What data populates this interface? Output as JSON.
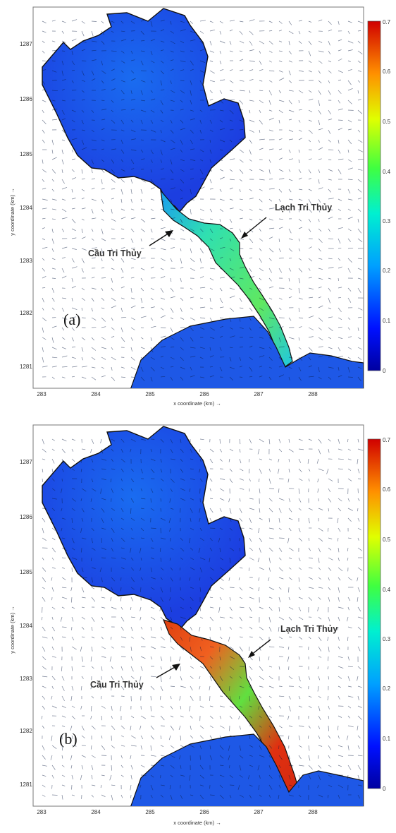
{
  "panels": [
    {
      "id": "a",
      "letter": "(a)",
      "xlabel": "x coordinate (km) →",
      "ylabel": "y coordinate (km) →",
      "x_ticks": [
        "283",
        "284",
        "285",
        "286",
        "287",
        "288"
      ],
      "y_ticks": [
        "1287",
        "1286",
        "1285",
        "1284",
        "1283",
        "1282",
        "1281"
      ],
      "colorbar": {
        "ticks": [
          "0.7",
          "0.6",
          "0.5",
          "0.4",
          "0.3",
          "0.2",
          "0.1",
          "0"
        ]
      },
      "annotations": [
        {
          "label": "Lạch Tri Thủy"
        },
        {
          "label": "Cầu Tri Thủy"
        }
      ],
      "channel_peak": 0.45
    },
    {
      "id": "b",
      "letter": "(b)",
      "xlabel": "x coordinate (km) →",
      "ylabel": "y coordinate (km) →",
      "x_ticks": [
        "283",
        "284",
        "285",
        "286",
        "287",
        "288"
      ],
      "y_ticks": [
        "1287",
        "1286",
        "1285",
        "1284",
        "1283",
        "1282",
        "1281"
      ],
      "colorbar": {
        "ticks": [
          "0.7",
          "0.6",
          "0.5",
          "0.4",
          "0.3",
          "0.2",
          "0.1",
          "0"
        ]
      },
      "annotations": [
        {
          "label": "Lạch Tri Thủy"
        },
        {
          "label": "Cầu Tri Thủy"
        }
      ],
      "channel_peak": 0.7
    }
  ],
  "chart_data": [
    {
      "type": "heatmap",
      "title": "",
      "xlabel": "x coordinate (km) →",
      "ylabel": "y coordinate (km) →",
      "xlim": [
        282.8,
        289.0
      ],
      "ylim": [
        1280.6,
        1287.7
      ],
      "x_ticks": [
        283,
        284,
        285,
        286,
        287,
        288
      ],
      "y_ticks": [
        1281,
        1282,
        1283,
        1284,
        1285,
        1286,
        1287
      ],
      "colorbar": {
        "min": 0,
        "max": 0.7,
        "ticks": [
          0,
          0.1,
          0.2,
          0.3,
          0.4,
          0.5,
          0.6,
          0.7
        ],
        "colormap": "jet"
      },
      "annotations": [
        "Lạch Tri Thủy",
        "Cầu Tri Thủy"
      ],
      "panel_label": "(a)"
    },
    {
      "type": "heatmap",
      "title": "",
      "xlabel": "x coordinate (km) →",
      "ylabel": "y coordinate (km) →",
      "xlim": [
        282.8,
        289.0
      ],
      "ylim": [
        1280.6,
        1287.7
      ],
      "x_ticks": [
        283,
        284,
        285,
        286,
        287,
        288
      ],
      "y_ticks": [
        1281,
        1282,
        1283,
        1284,
        1285,
        1286,
        1287
      ],
      "colorbar": {
        "min": 0,
        "max": 0.7,
        "ticks": [
          0,
          0.1,
          0.2,
          0.3,
          0.4,
          0.5,
          0.6,
          0.7
        ],
        "colormap": "jet"
      },
      "annotations": [
        "Lạch Tri Thủy",
        "Cầu Tri Thủy"
      ],
      "panel_label": "(b)"
    }
  ],
  "colors": {
    "water_low": "#1f4fe0",
    "water_mid": "#1a8cf0",
    "channel_mid": "#22d8a0",
    "channel_high": "#e03010",
    "shoreline": "#111111"
  }
}
